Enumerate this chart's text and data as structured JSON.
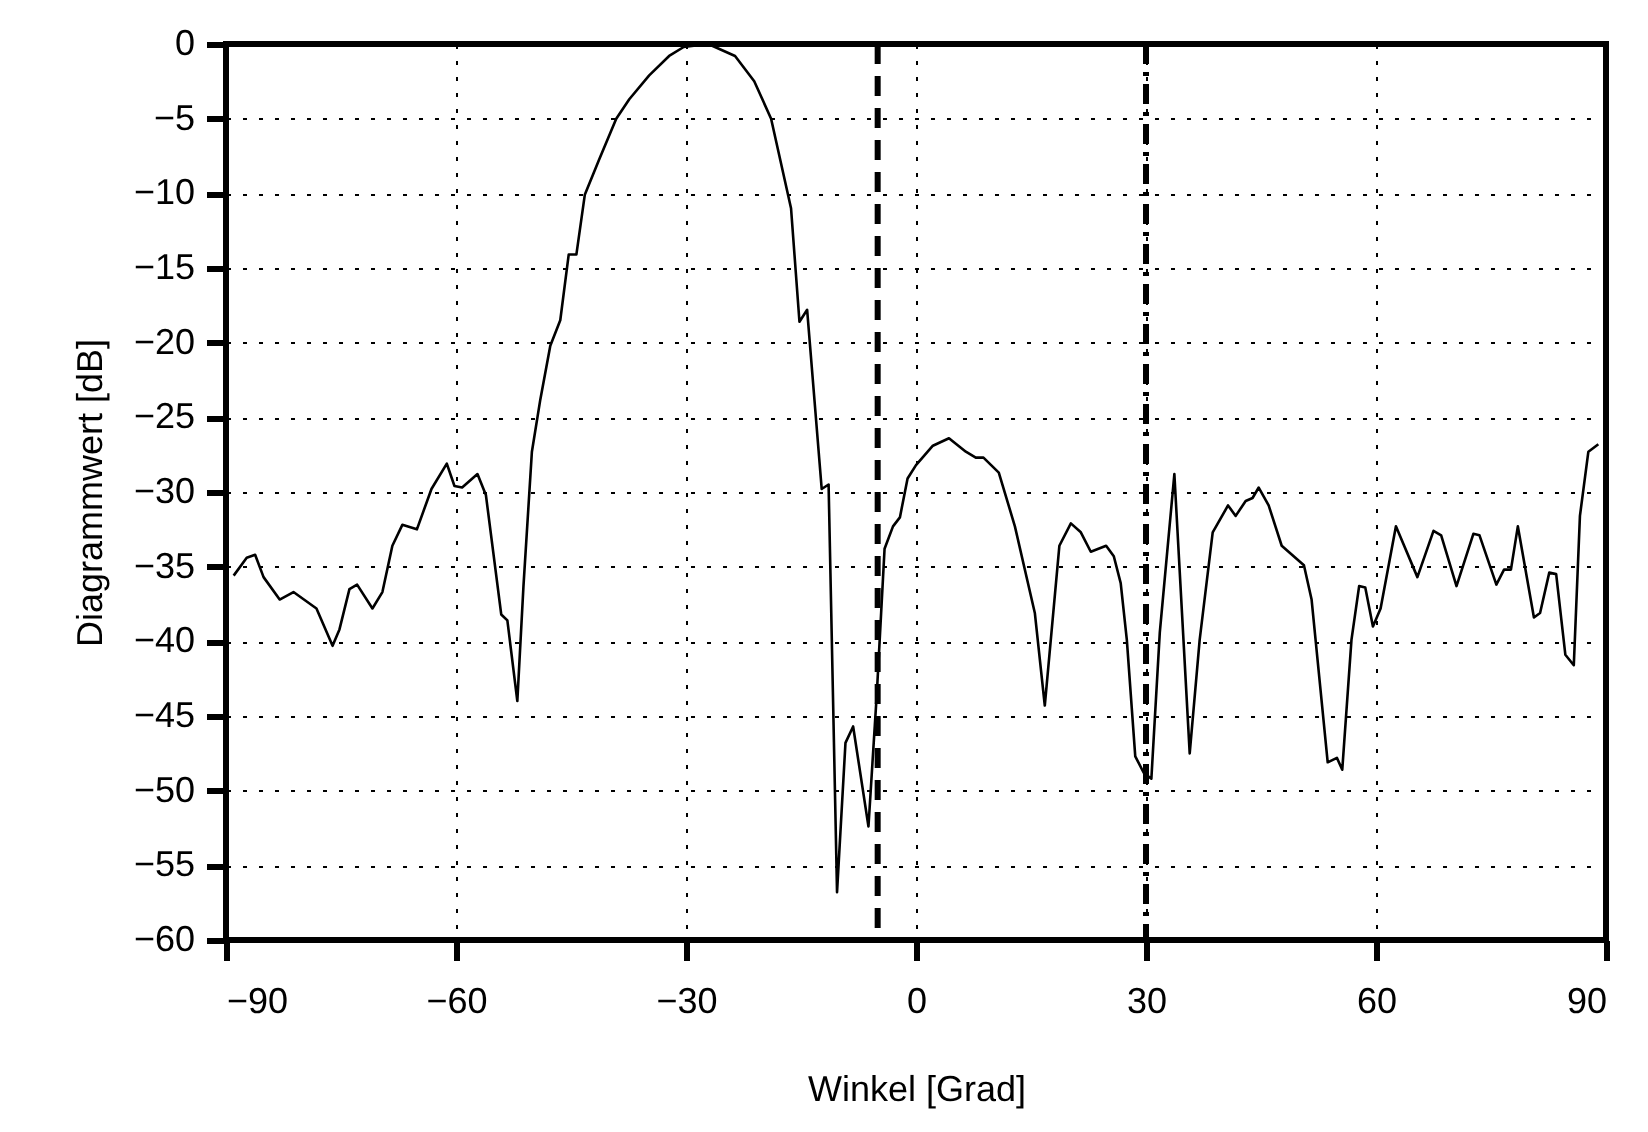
{
  "chart_data": {
    "type": "line",
    "xlabel": "Winkel [Grad]",
    "ylabel": "Diagrammwert [dB]",
    "x": [
      -89.0,
      -87.3,
      -86.2,
      -85.1,
      -83.0,
      -81.2,
      -78.2,
      -76.1,
      -75.2,
      -73.9,
      -72.9,
      -70.9,
      -69.6,
      -68.3,
      -67.0,
      -65.1,
      -63.2,
      -61.2,
      -60.2,
      -59.2,
      -57.2,
      -56.1,
      -54.1,
      -53.3,
      -52.0,
      -51.2,
      -50.1,
      -49.0,
      -47.7,
      -46.4,
      -45.3,
      -44.3,
      -43.2,
      -41.3,
      -39.1,
      -37.4,
      -34.8,
      -32.2,
      -30.3,
      -27.1,
      -23.6,
      -21.1,
      -18.9,
      -16.3,
      -15.2,
      -14.2,
      -12.3,
      -11.4,
      -10.3,
      -9.2,
      -8.2,
      -6.2,
      -5.1,
      -4.1,
      -3.0,
      -2.1,
      -1.1,
      0.0,
      2.2,
      4.3,
      6.5,
      7.8,
      8.8,
      10.8,
      12.9,
      15.5,
      16.8,
      18.7,
      20.2,
      21.5,
      22.8,
      24.8,
      25.8,
      26.7,
      27.5,
      28.6,
      29.7,
      30.7,
      31.8,
      33.7,
      35.7,
      37.0,
      38.7,
      40.7,
      41.7,
      43.0,
      43.9,
      44.7,
      46.0,
      47.7,
      50.6,
      51.6,
      53.7,
      54.9,
      55.6,
      56.8,
      57.8,
      58.6,
      59.6,
      60.6,
      62.6,
      65.4,
      67.5,
      68.5,
      70.5,
      72.7,
      73.5,
      75.7,
      76.7,
      77.6,
      78.5,
      80.6,
      81.4,
      82.6,
      83.5,
      84.7,
      85.8,
      86.6,
      87.7,
      89.0
    ],
    "series": [
      {
        "color": "#000000",
        "values": [
          -35.6,
          -34.4,
          -34.2,
          -35.7,
          -37.2,
          -36.7,
          -37.8,
          -40.3,
          -39.2,
          -36.5,
          -36.2,
          -37.8,
          -36.7,
          -33.6,
          -32.2,
          -32.5,
          -29.8,
          -28.1,
          -29.6,
          -29.7,
          -28.8,
          -30.2,
          -38.2,
          -38.6,
          -44.0,
          -36.3,
          -27.3,
          -23.8,
          -20.2,
          -18.5,
          -14.1,
          -14.1,
          -10.1,
          -7.7,
          -5.0,
          -3.7,
          -2.1,
          -0.8,
          -0.2,
          0,
          -0.8,
          -2.5,
          -5.0,
          -11.0,
          -18.6,
          -17.8,
          -29.8,
          -29.5,
          -56.8,
          -46.8,
          -45.7,
          -52.4,
          -43.4,
          -33.8,
          -32.3,
          -31.7,
          -29.1,
          -28.2,
          -26.9,
          -26.4,
          -27.3,
          -27.7,
          -27.7,
          -28.7,
          -32.3,
          -38.1,
          -44.3,
          -33.6,
          -32.1,
          -32.7,
          -34.0,
          -33.6,
          -34.3,
          -36.1,
          -39.9,
          -47.7,
          -48.8,
          -49.2,
          -39.4,
          -28.8,
          -47.5,
          -39.9,
          -32.7,
          -30.9,
          -31.6,
          -30.6,
          -30.4,
          -29.7,
          -30.9,
          -33.6,
          -34.9,
          -37.2,
          -48.1,
          -47.8,
          -48.6,
          -39.9,
          -36.3,
          -36.4,
          -39.0,
          -37.8,
          -32.3,
          -35.7,
          -32.6,
          -32.9,
          -36.3,
          -32.8,
          -32.9,
          -36.2,
          -35.2,
          -35.2,
          -32.3,
          -38.4,
          -38.1,
          -35.4,
          -35.5,
          -40.9,
          -41.6,
          -31.6,
          -27.3,
          -26.8
        ]
      }
    ],
    "xlim": [
      -90,
      90
    ],
    "ylim": [
      -60,
      0
    ],
    "xticks": [
      -90,
      -60,
      -30,
      0,
      30,
      60,
      90
    ],
    "yticks": [
      0,
      -5,
      -10,
      -15,
      -20,
      -25,
      -30,
      -35,
      -40,
      -45,
      -50,
      -55,
      -60
    ],
    "grid": true,
    "line_style": "solid",
    "marker": "none",
    "ref_lines": [
      {
        "axis": "x",
        "value": -5,
        "line_style": "dashed",
        "color": "#000000"
      },
      {
        "axis": "x",
        "value": 30,
        "line_style": "dashdot",
        "color": "#000000"
      }
    ]
  }
}
